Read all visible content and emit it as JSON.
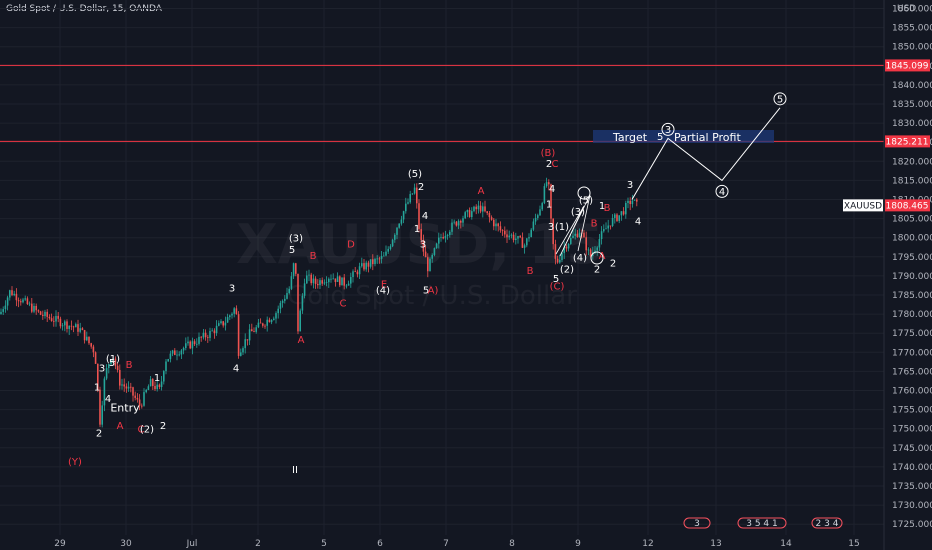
{
  "header": {
    "symbol_line": "Gold Spot / U.S. Dollar, 15, OANDA",
    "currency": "USD"
  },
  "watermark": {
    "ticker": "XAUUSD, 15",
    "name": "Gold Spot / U.S. Dollar"
  },
  "colors": {
    "bg": "#131722",
    "up": "#26a69a",
    "down": "#ef5350",
    "level": "#f23645",
    "grid": "#1e222d",
    "text": "#b2b5be",
    "accent": "#2962ff"
  },
  "chart_data": {
    "type": "candlestick",
    "title": "Gold Spot / U.S. Dollar, 15, OANDA",
    "ylim": [
      1720,
      1862
    ],
    "y_ticks": [
      1860,
      1855,
      1850,
      1845,
      1840,
      1835,
      1830,
      1825,
      1820,
      1815,
      1810,
      1805,
      1800,
      1795,
      1790,
      1785,
      1780,
      1775,
      1770,
      1765,
      1760,
      1755,
      1750,
      1745,
      1740,
      1735,
      1730,
      1725
    ],
    "x_tick_labels": [
      "29",
      "30",
      "Jul",
      "2",
      "5",
      "6",
      "7",
      "8",
      "9",
      "12",
      "13",
      "14",
      "15"
    ],
    "price_path": [
      [
        0,
        1780
      ],
      [
        10,
        1786
      ],
      [
        25,
        1783
      ],
      [
        40,
        1780
      ],
      [
        60,
        1778
      ],
      [
        80,
        1776
      ],
      [
        95,
        1770
      ],
      [
        100,
        1752
      ],
      [
        105,
        1764
      ],
      [
        112,
        1770
      ],
      [
        120,
        1762
      ],
      [
        130,
        1760
      ],
      [
        140,
        1756
      ],
      [
        150,
        1762
      ],
      [
        160,
        1760
      ],
      [
        165,
        1768
      ],
      [
        175,
        1770
      ],
      [
        190,
        1772
      ],
      [
        210,
        1775
      ],
      [
        225,
        1778
      ],
      [
        236,
        1782
      ],
      [
        238,
        1770
      ],
      [
        250,
        1775
      ],
      [
        275,
        1780
      ],
      [
        290,
        1787
      ],
      [
        295,
        1795
      ],
      [
        298,
        1776
      ],
      [
        305,
        1790
      ],
      [
        315,
        1788
      ],
      [
        330,
        1790
      ],
      [
        345,
        1788
      ],
      [
        360,
        1792
      ],
      [
        385,
        1795
      ],
      [
        400,
        1805
      ],
      [
        415,
        1813
      ],
      [
        420,
        1800
      ],
      [
        428,
        1792
      ],
      [
        440,
        1800
      ],
      [
        460,
        1805
      ],
      [
        480,
        1808
      ],
      [
        500,
        1802
      ],
      [
        515,
        1800
      ],
      [
        525,
        1798
      ],
      [
        540,
        1808
      ],
      [
        548,
        1816
      ],
      [
        552,
        1800
      ],
      [
        556,
        1793
      ],
      [
        565,
        1798
      ],
      [
        580,
        1802
      ],
      [
        590,
        1795
      ],
      [
        600,
        1800
      ],
      [
        610,
        1804
      ],
      [
        620,
        1806
      ],
      [
        632,
        1810
      ],
      [
        638,
        1808
      ]
    ],
    "levels": [
      {
        "label": "1845.099",
        "value": 1845.099,
        "color": "#f23645"
      },
      {
        "label": "1825.211",
        "value": 1825.211,
        "color": "#f23645"
      },
      {
        "label": "1808.465",
        "value": 1808.465,
        "color": "#f23645"
      }
    ],
    "last_price_symbol": "XAUUSD",
    "projection": [
      [
        632,
        1810
      ],
      [
        668,
        1826
      ],
      [
        722,
        1815
      ],
      [
        780,
        1834
      ]
    ],
    "projection_labels": [
      "3",
      "4",
      "5"
    ],
    "target_box": {
      "target_label": "Target",
      "wave": "5",
      "profit_label": "Partial Profit"
    },
    "annotations": [
      {
        "text": "(Y)",
        "x": 75,
        "y": 1741.5,
        "color": "red"
      },
      {
        "text": "II",
        "x": 295,
        "y": 1739.5,
        "color": "white"
      },
      {
        "text": "Entry",
        "x": 125,
        "y": 1755.5,
        "color": "white"
      },
      {
        "text": "(1)",
        "x": 113,
        "y": 1768.5,
        "color": "white"
      },
      {
        "text": "5",
        "x": 112,
        "y": 1767.5,
        "color": "white"
      },
      {
        "text": "3",
        "x": 102,
        "y": 1766,
        "color": "white"
      },
      {
        "text": "1",
        "x": 97,
        "y": 1761,
        "color": "white"
      },
      {
        "text": "4",
        "x": 108,
        "y": 1758,
        "color": "white"
      },
      {
        "text": "2",
        "x": 99,
        "y": 1749,
        "color": "white"
      },
      {
        "text": "B",
        "x": 129,
        "y": 1767,
        "color": "red"
      },
      {
        "text": "A",
        "x": 120,
        "y": 1751,
        "color": "red"
      },
      {
        "text": "C",
        "x": 141,
        "y": 1750,
        "color": "red"
      },
      {
        "text": "(2)",
        "x": 147,
        "y": 1750,
        "color": "white"
      },
      {
        "text": "1",
        "x": 157,
        "y": 1763.5,
        "color": "white"
      },
      {
        "text": "2",
        "x": 163,
        "y": 1751,
        "color": "white"
      },
      {
        "text": "3",
        "x": 232,
        "y": 1787,
        "color": "white"
      },
      {
        "text": "4",
        "x": 236,
        "y": 1766,
        "color": "white"
      },
      {
        "text": "(3)",
        "x": 296,
        "y": 1800,
        "color": "white"
      },
      {
        "text": "5",
        "x": 292,
        "y": 1797,
        "color": "white"
      },
      {
        "text": "B",
        "x": 313,
        "y": 1795.5,
        "color": "red"
      },
      {
        "text": "A",
        "x": 301,
        "y": 1773.5,
        "color": "red"
      },
      {
        "text": "C",
        "x": 343,
        "y": 1783,
        "color": "red"
      },
      {
        "text": "D",
        "x": 351,
        "y": 1798.5,
        "color": "red"
      },
      {
        "text": "E",
        "x": 384,
        "y": 1788,
        "color": "red"
      },
      {
        "text": "(4)",
        "x": 383,
        "y": 1786.5,
        "color": "white"
      },
      {
        "text": "(5)",
        "x": 415,
        "y": 1817,
        "color": "white"
      },
      {
        "text": "2",
        "x": 421,
        "y": 1813.5,
        "color": "white"
      },
      {
        "text": "4",
        "x": 425,
        "y": 1806,
        "color": "white"
      },
      {
        "text": "1",
        "x": 417,
        "y": 1802.5,
        "color": "white"
      },
      {
        "text": "3",
        "x": 423,
        "y": 1798.5,
        "color": "white"
      },
      {
        "text": "5",
        "x": 426,
        "y": 1786.5,
        "color": "white"
      },
      {
        "text": "A)",
        "x": 433,
        "y": 1786.5,
        "color": "red"
      },
      {
        "text": "A",
        "x": 481,
        "y": 1812.5,
        "color": "red"
      },
      {
        "text": "(B)",
        "x": 548,
        "y": 1822.5,
        "color": "red"
      },
      {
        "text": "2",
        "x": 549,
        "y": 1819.5,
        "color": "white"
      },
      {
        "text": "C",
        "x": 555,
        "y": 1819.5,
        "color": "red"
      },
      {
        "text": "4",
        "x": 552,
        "y": 1813,
        "color": "white"
      },
      {
        "text": "1",
        "x": 549,
        "y": 1809,
        "color": "white"
      },
      {
        "text": "3",
        "x": 551,
        "y": 1803,
        "color": "white"
      },
      {
        "text": "(1)",
        "x": 562,
        "y": 1803,
        "color": "white"
      },
      {
        "text": "B",
        "x": 530,
        "y": 1791.5,
        "color": "red"
      },
      {
        "text": "5",
        "x": 556,
        "y": 1789.5,
        "color": "white"
      },
      {
        "text": "(C)",
        "x": 557,
        "y": 1787.5,
        "color": "red"
      },
      {
        "text": "(2)",
        "x": 567,
        "y": 1792,
        "color": "white"
      },
      {
        "text": "(3)",
        "x": 578,
        "y": 1807,
        "color": "white"
      },
      {
        "text": "(5)",
        "x": 586,
        "y": 1810,
        "color": "white"
      },
      {
        "text": "B",
        "x": 594,
        "y": 1804,
        "color": "red"
      },
      {
        "text": "(4)",
        "x": 580,
        "y": 1795,
        "color": "white"
      },
      {
        "text": "1",
        "x": 602,
        "y": 1808.5,
        "color": "white"
      },
      {
        "text": "B",
        "x": 607,
        "y": 1808,
        "color": "red"
      },
      {
        "text": "A",
        "x": 602,
        "y": 1795.5,
        "color": "red"
      },
      {
        "text": "2",
        "x": 597,
        "y": 1792,
        "color": "white"
      },
      {
        "text": "2",
        "x": 613,
        "y": 1793.5,
        "color": "white"
      },
      {
        "text": "3",
        "x": 630,
        "y": 1814,
        "color": "white"
      },
      {
        "text": "4",
        "x": 638,
        "y": 1804.5,
        "color": "white"
      }
    ],
    "events": [
      "3",
      "3  5  4  1",
      "2  3  4"
    ]
  }
}
